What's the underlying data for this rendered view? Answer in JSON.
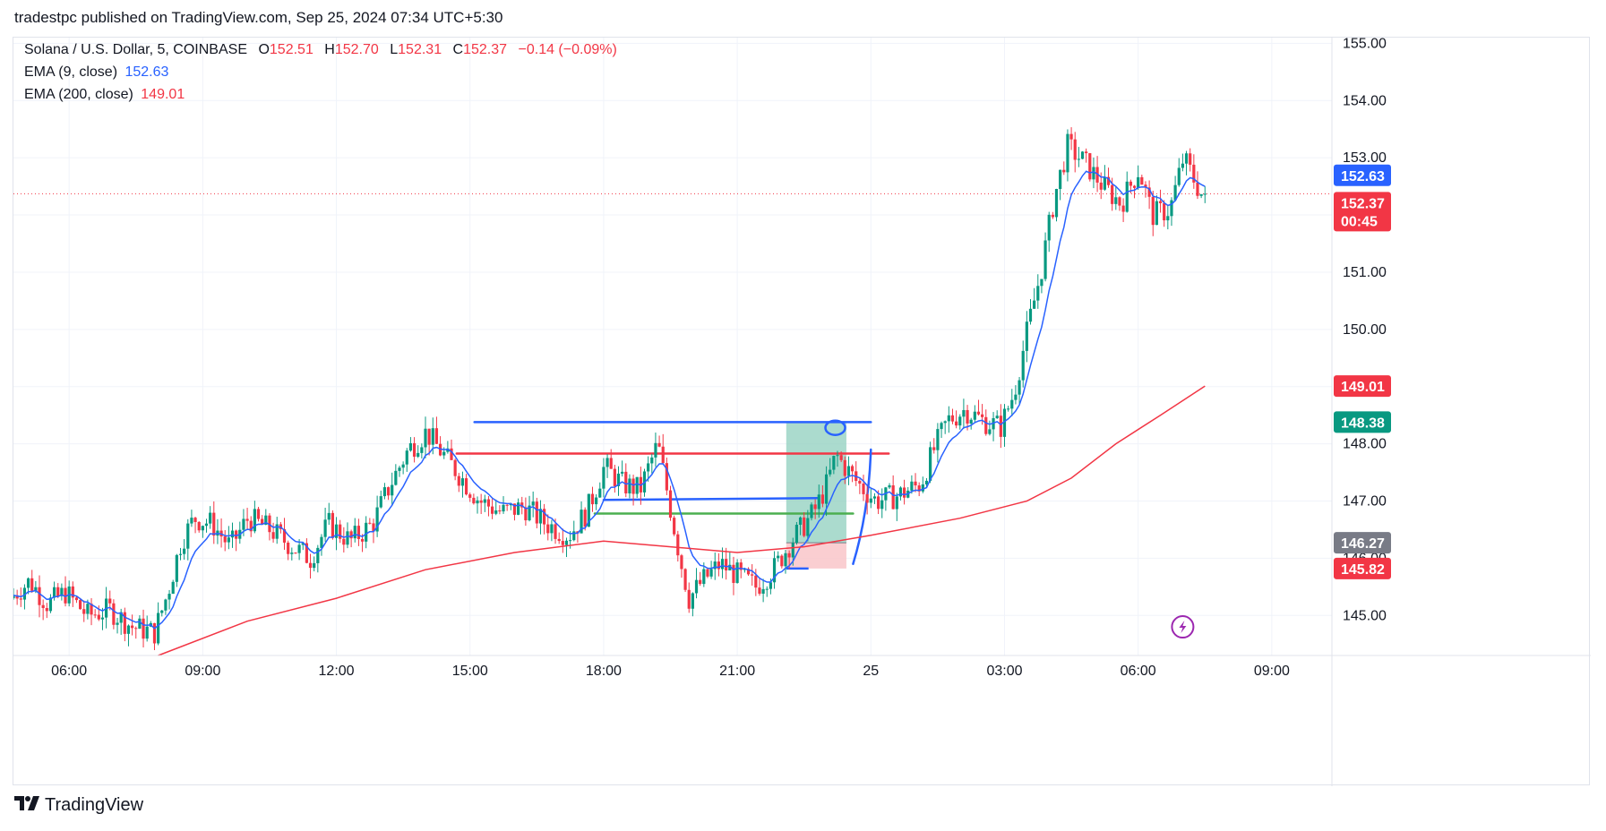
{
  "header": {
    "published_text": "tradestpc published on TradingView.com, Sep 25, 2024 07:34 UTC+5:30"
  },
  "legend": {
    "symbol": "Solana / U.S. Dollar, 5, COINBASE",
    "open_label": "O",
    "open": "152.51",
    "high_label": "H",
    "high": "152.70",
    "low_label": "L",
    "low": "152.31",
    "close_label": "C",
    "close": "152.37",
    "change": "−0.14 (−0.09%)",
    "ema9_label": "EMA (9, close)",
    "ema9_value": "152.63",
    "ema200_label": "EMA (200, close)",
    "ema200_value": "149.01"
  },
  "brand": {
    "name": "TradingView",
    "logo_icon": "tradingview-logo-icon"
  },
  "colors": {
    "up": "#089981",
    "down": "#f23645",
    "ema9": "#2962ff",
    "ema200": "#f23645",
    "drawing_blue": "#2962ff",
    "drawing_red": "#f23645",
    "drawing_green": "#4caf50",
    "position_profit": "#8fcfbd",
    "position_loss": "#f9c5c9"
  },
  "chart_data": {
    "type": "candlestick",
    "symbol": "Solana / U.S. Dollar",
    "interval": "5",
    "exchange": "COINBASE",
    "y_axis": {
      "min": 144.3,
      "max": 155.1,
      "ticks": [
        "145.00",
        "146.00",
        "147.00",
        "148.00",
        "149.00",
        "150.00",
        "151.00",
        "152.00",
        "153.00",
        "154.00",
        "155.00"
      ],
      "side": "right"
    },
    "x_axis": {
      "ticks": [
        {
          "label": "06:00",
          "hour": 6
        },
        {
          "label": "09:00",
          "hour": 9
        },
        {
          "label": "12:00",
          "hour": 12
        },
        {
          "label": "15:00",
          "hour": 15
        },
        {
          "label": "18:00",
          "hour": 18
        },
        {
          "label": "21:00",
          "hour": 21
        },
        {
          "label": "25",
          "hour": 24
        },
        {
          "label": "03:00",
          "hour": 27
        },
        {
          "label": "06:00",
          "hour": 30
        },
        {
          "label": "09:00",
          "hour": 33
        }
      ],
      "range_hours": [
        4.75,
        34.35
      ],
      "last_bar_hour": 31.5
    },
    "price_path": [
      [
        4.75,
        145.3
      ],
      [
        5.2,
        145.6
      ],
      [
        5.6,
        145.2
      ],
      [
        6.0,
        145.4
      ],
      [
        6.5,
        145.0
      ],
      [
        7.0,
        145.1
      ],
      [
        7.5,
        144.8
      ],
      [
        8.0,
        144.7
      ],
      [
        8.3,
        145.4
      ],
      [
        8.6,
        146.3
      ],
      [
        8.9,
        146.7
      ],
      [
        9.3,
        146.6
      ],
      [
        9.7,
        146.2
      ],
      [
        10.1,
        146.7
      ],
      [
        10.6,
        146.5
      ],
      [
        11.1,
        146.2
      ],
      [
        11.5,
        146.0
      ],
      [
        11.9,
        146.6
      ],
      [
        12.4,
        146.3
      ],
      [
        12.9,
        146.6
      ],
      [
        13.3,
        147.3
      ],
      [
        13.7,
        147.9
      ],
      [
        14.1,
        148.2
      ],
      [
        14.4,
        147.9
      ],
      [
        14.8,
        147.5
      ],
      [
        15.3,
        147.0
      ],
      [
        15.8,
        146.8
      ],
      [
        16.3,
        146.9
      ],
      [
        16.8,
        146.6
      ],
      [
        17.3,
        146.4
      ],
      [
        17.7,
        146.8
      ],
      [
        18.1,
        147.6
      ],
      [
        18.5,
        147.3
      ],
      [
        18.9,
        147.2
      ],
      [
        19.3,
        148.0
      ],
      [
        19.5,
        147.2
      ],
      [
        19.8,
        146.0
      ],
      [
        20.0,
        145.3
      ],
      [
        20.3,
        145.6
      ],
      [
        20.7,
        145.9
      ],
      [
        21.1,
        145.7
      ],
      [
        21.5,
        145.5
      ],
      [
        21.9,
        145.8
      ],
      [
        22.3,
        146.3
      ],
      [
        22.8,
        146.8
      ],
      [
        23.1,
        147.3
      ],
      [
        23.3,
        147.8
      ],
      [
        23.5,
        147.6
      ],
      [
        23.8,
        147.3
      ],
      [
        24.2,
        147.0
      ],
      [
        24.7,
        147.1
      ],
      [
        25.2,
        147.3
      ],
      [
        25.5,
        147.9
      ],
      [
        25.8,
        148.4
      ],
      [
        26.2,
        148.6
      ],
      [
        26.6,
        148.4
      ],
      [
        27.0,
        148.3
      ],
      [
        27.3,
        148.9
      ],
      [
        27.6,
        150.0
      ],
      [
        27.9,
        151.0
      ],
      [
        28.2,
        152.3
      ],
      [
        28.5,
        153.2
      ],
      [
        28.9,
        152.9
      ],
      [
        29.3,
        152.5
      ],
      [
        29.7,
        152.2
      ],
      [
        30.1,
        152.8
      ],
      [
        30.4,
        152.0
      ],
      [
        30.8,
        152.1
      ],
      [
        31.1,
        153.0
      ],
      [
        31.35,
        152.6
      ],
      [
        31.5,
        152.37
      ]
    ],
    "ema200_path": [
      [
        8.0,
        144.3
      ],
      [
        10.0,
        144.9
      ],
      [
        12.0,
        145.3
      ],
      [
        14.0,
        145.8
      ],
      [
        16.0,
        146.1
      ],
      [
        18.0,
        146.3
      ],
      [
        19.5,
        146.2
      ],
      [
        21.0,
        146.1
      ],
      [
        22.5,
        146.2
      ],
      [
        24.0,
        146.4
      ],
      [
        26.0,
        146.7
      ],
      [
        27.5,
        147.0
      ],
      [
        28.5,
        147.4
      ],
      [
        29.5,
        148.0
      ],
      [
        30.5,
        148.5
      ],
      [
        31.5,
        149.01
      ]
    ],
    "series": [
      {
        "name": "EMA (9, close)",
        "last": 152.63,
        "color": "#2962ff"
      },
      {
        "name": "EMA (200, close)",
        "last": 149.01,
        "color": "#f23645"
      }
    ],
    "last_price": 152.37,
    "countdown": "00:45",
    "price_tags": [
      {
        "value": "152.63",
        "kind": "ema9",
        "color": "#2962ff"
      },
      {
        "value": "152.37",
        "kind": "last",
        "color": "#f23645",
        "sub": "00:45"
      },
      {
        "value": "149.01",
        "kind": "ema200",
        "color": "#f23645"
      },
      {
        "value": "148.38",
        "kind": "target",
        "color": "#089981"
      },
      {
        "value": "146.27",
        "kind": "entry",
        "color": "#787b86"
      },
      {
        "value": "145.82",
        "kind": "stop",
        "color": "#f23645"
      }
    ],
    "drawings": {
      "lines": [
        {
          "color": "#2962ff",
          "from": [
            15.1,
            148.38
          ],
          "to": [
            24.0,
            148.38
          ]
        },
        {
          "color": "#f23645",
          "from": [
            14.7,
            147.83
          ],
          "to": [
            24.4,
            147.83
          ]
        },
        {
          "color": "#2962ff",
          "from": [
            18.0,
            147.02
          ],
          "to": [
            22.8,
            147.05
          ]
        },
        {
          "color": "#4caf50",
          "from": [
            17.8,
            146.78
          ],
          "to": [
            23.6,
            146.78
          ]
        }
      ],
      "long_position": {
        "from_hour": 22.1,
        "to_hour": 23.45,
        "entry": 146.27,
        "target": 148.38,
        "stop": 145.82
      }
    },
    "grid": true,
    "last_price_line": "dotted"
  }
}
